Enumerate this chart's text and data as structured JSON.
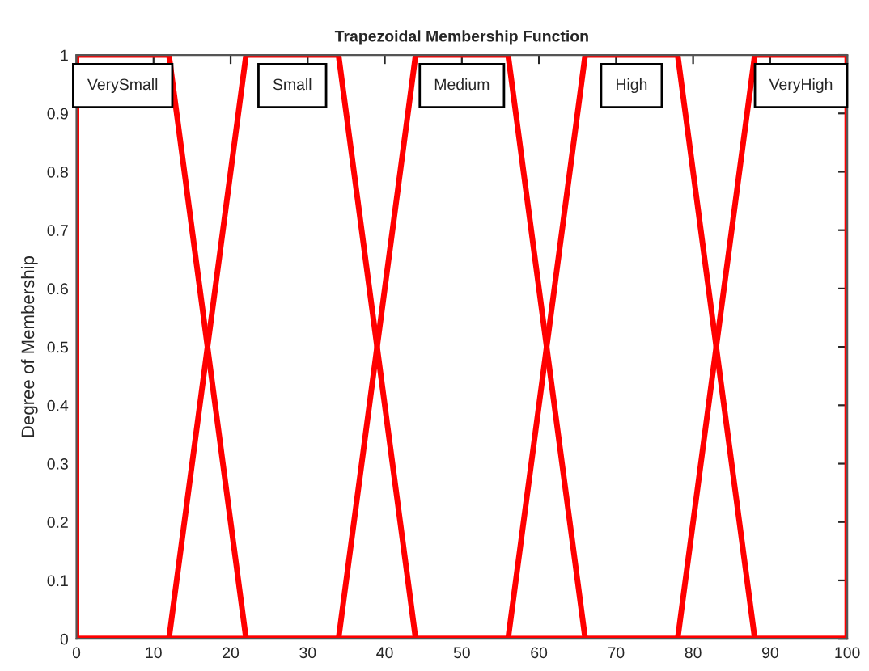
{
  "chart_data": {
    "type": "line",
    "title": "Trapezoidal Membership Function",
    "ylabel": "Degree of Membership",
    "series": [
      {
        "name": "VerySmall",
        "color": "#ff0000",
        "x": [
          0,
          0,
          12,
          22,
          100
        ],
        "values": [
          0,
          1,
          1,
          0,
          0
        ]
      },
      {
        "name": "Small",
        "color": "#ff0000",
        "x": [
          0,
          12,
          22,
          34,
          44,
          100
        ],
        "values": [
          0,
          0,
          1,
          1,
          0,
          0
        ]
      },
      {
        "name": "Medium",
        "color": "#ff0000",
        "x": [
          0,
          34,
          44,
          56,
          66,
          100
        ],
        "values": [
          0,
          0,
          1,
          1,
          0,
          0
        ]
      },
      {
        "name": "High",
        "color": "#ff0000",
        "x": [
          0,
          56,
          66,
          78,
          88,
          100
        ],
        "values": [
          0,
          0,
          1,
          1,
          0,
          0
        ]
      },
      {
        "name": "VeryHigh",
        "color": "#ff0000",
        "x": [
          0,
          78,
          88,
          100,
          100
        ],
        "values": [
          0,
          0,
          1,
          1,
          0
        ]
      }
    ],
    "xlim": [
      0,
      100
    ],
    "xticks": [
      0,
      10,
      20,
      30,
      40,
      50,
      60,
      70,
      80,
      90,
      100
    ],
    "ylim": [
      0,
      1
    ],
    "yticks": [
      0,
      0.1,
      0.2,
      0.3,
      0.4,
      0.5,
      0.6,
      0.7,
      0.8,
      0.9,
      1
    ],
    "grid": false,
    "legend": false,
    "marker": "none",
    "line_style": "solid"
  }
}
